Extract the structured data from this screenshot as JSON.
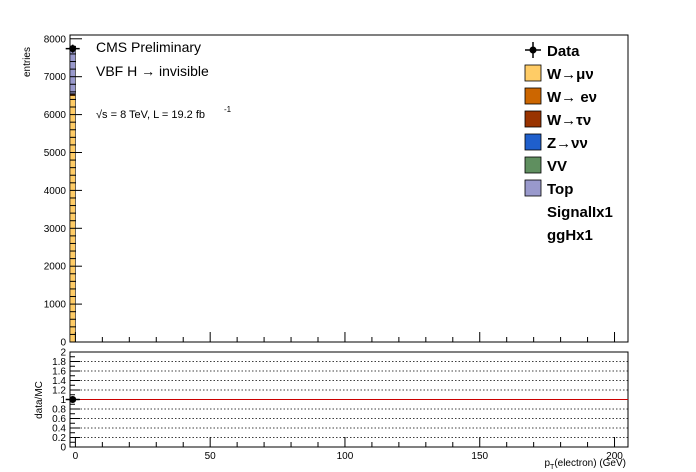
{
  "chart_data": [
    {
      "type": "bar",
      "stacked": true,
      "experiment": "CMS Preliminary",
      "process": "VBF H → invisible",
      "energy": "√s = 8 TeV, L = 19.2 fb",
      "lumi_exp": "-1",
      "ylabel": "entries",
      "xlim": [
        -2,
        205
      ],
      "ylim": [
        0,
        8100
      ],
      "xticks": [
        0,
        50,
        100,
        150,
        200
      ],
      "yticks": [
        0,
        1000,
        2000,
        3000,
        4000,
        5000,
        6000,
        7000,
        8000
      ],
      "bin_x": [
        -2,
        0
      ],
      "series": [
        {
          "name": "W→μν",
          "color": "#ffcc66",
          "values": [
            6500
          ]
        },
        {
          "name": "W→ eν",
          "color": "#cc6600",
          "values": [
            30
          ]
        },
        {
          "name": "W→τν",
          "color": "#993300",
          "values": [
            20
          ]
        },
        {
          "name": "Z→νν",
          "color": "#1f5fcc",
          "values": [
            0
          ]
        },
        {
          "name": "VV",
          "color": "#5f8f5f",
          "values": [
            0
          ]
        },
        {
          "name": "Top",
          "color": "#9999cc",
          "values": [
            1200
          ]
        }
      ],
      "data_points": [
        {
          "x": -1,
          "y": 7740
        }
      ],
      "legend": {
        "data_label": "Data",
        "extra_entries": [
          "SignalIx1",
          "ggHx1"
        ],
        "position": "top-right"
      }
    },
    {
      "type": "scatter",
      "ylabel": "data/MC",
      "xlabel": "pₜ(electron) (GeV)",
      "xlabel_main": "p",
      "xlabel_sub": "T",
      "xlabel_rest": "(electron) (GeV)",
      "xlim": [
        -2,
        205
      ],
      "ylim": [
        0,
        2
      ],
      "yticks": [
        0,
        0.2,
        0.4,
        0.6,
        0.8,
        1,
        1.2,
        1.4,
        1.6,
        1.8,
        2
      ],
      "ytick_labels": [
        "0",
        "0.2",
        "0.4",
        "0.6",
        "0.8",
        "1",
        "1.2",
        "1.4",
        "1.6",
        "1.8",
        "2"
      ],
      "xticks": [
        0,
        50,
        100,
        150,
        200
      ],
      "reference_line": 1,
      "reference_color": "#cc0000",
      "grid_y": true,
      "points": [
        {
          "x": -1,
          "y": 1.0
        }
      ]
    }
  ]
}
